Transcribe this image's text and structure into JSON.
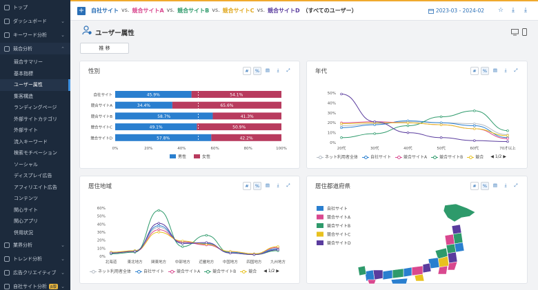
{
  "sidebar": {
    "top_items": [
      {
        "label": "トップ",
        "chevron": ""
      },
      {
        "label": "ダッシュボード",
        "chevron": "⌄"
      },
      {
        "label": "キーワード分析",
        "chevron": "⌄"
      },
      {
        "label": "競合分析",
        "chevron": "⌃"
      }
    ],
    "sub_items": [
      "競合サマリー",
      "基本指標",
      "ユーザー属性",
      "集客構造",
      "ランディングページ",
      "外部サイトカテゴリ",
      "外部サイト",
      "流入キーワード",
      "検索モチベーション",
      "ソーシャル",
      "ディスプレイ広告",
      "アフィリエイト広告",
      "コンテンツ",
      "関心サイト",
      "関心アプリ",
      "併用状況"
    ],
    "active_sub": "ユーザー属性",
    "bottom_items": [
      {
        "label": "業界分析",
        "chevron": "⌄"
      },
      {
        "label": "トレンド分析",
        "chevron": "⌄"
      },
      {
        "label": "広告クリエイティブ",
        "chevron": "⌄"
      },
      {
        "label": "自社サイト分析",
        "chevron": "⌄",
        "badge": "β版"
      }
    ]
  },
  "topbar": {
    "title_parts": [
      {
        "text": "自社サイト",
        "color": "#2a6fb6"
      },
      {
        "text": "vs.",
        "color": "#555"
      },
      {
        "text": "競合サイトA",
        "color": "#d9488f"
      },
      {
        "text": "vs.",
        "color": "#555"
      },
      {
        "text": "競合サイトB",
        "color": "#2e9a6b"
      },
      {
        "text": "vs.",
        "color": "#555"
      },
      {
        "text": "競合サイトC",
        "color": "#e0a81f"
      },
      {
        "text": "vs.",
        "color": "#555"
      },
      {
        "text": "競合サイトD",
        "color": "#5a3c9e"
      },
      {
        "text": "（すべてのユーザー）",
        "color": "#333"
      }
    ],
    "date_range": "2023-03 - 2024-02"
  },
  "page": {
    "title": "ユーザー属性",
    "button": "推 移"
  },
  "panels": {
    "gender": {
      "title": "性別"
    },
    "age": {
      "title": "年代",
      "pager": "1/2"
    },
    "region": {
      "title": "居住地域",
      "pager": "1/2"
    },
    "prefecture": {
      "title": "居住都道府県"
    }
  },
  "tools": [
    "#",
    "%"
  ],
  "colors": {
    "self": "#2a7fcf",
    "a": "#d9488f",
    "b": "#2e9a6b",
    "c": "#e8c11f",
    "d": "#5a3c9e",
    "net": "#b5bcc5",
    "male": "#2a7fcf",
    "female": "#b83b5e"
  },
  "chart_data": [
    {
      "type": "bar",
      "title": "性別",
      "categories": [
        "自社サイト",
        "競合サイトA",
        "競合サイトB",
        "競合サイトC",
        "競合サイトD"
      ],
      "series": [
        {
          "name": "男性",
          "values": [
            45.9,
            34.4,
            58.7,
            49.1,
            57.8
          ],
          "labels": [
            "45.9%",
            "34.4%",
            "58.7%",
            "49.1%",
            "57.8%"
          ]
        },
        {
          "name": "女性",
          "values": [
            54.1,
            65.6,
            41.3,
            50.9,
            42.2
          ],
          "labels": [
            "54.1%",
            "65.6%",
            "41.3%",
            "50.9%",
            "42.2%"
          ]
        }
      ],
      "xticks": [
        "0%",
        "20%",
        "40%",
        "60%",
        "80%",
        "100%"
      ],
      "xlim": [
        0,
        100
      ],
      "stacked": true
    },
    {
      "type": "line",
      "title": "年代",
      "categories": [
        "20代",
        "30代",
        "40代",
        "50代",
        "60代",
        "70才以上"
      ],
      "yticks": [
        "0%",
        "10%",
        "20%",
        "30%",
        "40%",
        "50%"
      ],
      "ylim": [
        0,
        50
      ],
      "series": [
        {
          "name": "ネット利用者全体",
          "values": [
            17,
            19,
            21,
            20,
            19,
            8
          ]
        },
        {
          "name": "自社サイト",
          "values": [
            15,
            18,
            22,
            20,
            17,
            5
          ]
        },
        {
          "name": "競合サイトA",
          "values": [
            20,
            21,
            20,
            18,
            14,
            4
          ]
        },
        {
          "name": "競合サイトB",
          "values": [
            5,
            9,
            17,
            26,
            32,
            12
          ]
        },
        {
          "name": "競合サイトC",
          "values": [
            19,
            20,
            20,
            18,
            14,
            7
          ]
        },
        {
          "name": "競合サイトD",
          "values": [
            49,
            21,
            10,
            5,
            2,
            1
          ]
        }
      ],
      "legend_visible": [
        "ネット利用者全体",
        "自社サイト",
        "競合サイトA",
        "競合サイトB",
        "競合"
      ]
    },
    {
      "type": "line",
      "title": "居住地域",
      "categories": [
        "北海道",
        "東北地方",
        "関東地方",
        "中部地方",
        "近畿地方",
        "中国地方",
        "四国地方",
        "九州地方"
      ],
      "yticks": [
        "0%",
        "10%",
        "20%",
        "30%",
        "40%",
        "50%",
        "60%"
      ],
      "ylim": [
        0,
        60
      ],
      "series": [
        {
          "name": "ネット利用者全体",
          "values": [
            4,
            6,
            36,
            17,
            15,
            5,
            3,
            10
          ]
        },
        {
          "name": "自社サイト",
          "values": [
            4,
            7,
            38,
            16,
            16,
            5,
            3,
            9
          ]
        },
        {
          "name": "競合サイトA",
          "values": [
            5,
            6,
            33,
            18,
            14,
            6,
            3,
            11
          ]
        },
        {
          "name": "競合サイトB",
          "values": [
            3,
            5,
            57,
            12,
            26,
            4,
            2,
            7
          ]
        },
        {
          "name": "競合サイトC",
          "values": [
            5,
            7,
            30,
            19,
            15,
            6,
            3,
            12
          ]
        },
        {
          "name": "競合サイトD",
          "values": [
            4,
            6,
            41,
            16,
            17,
            4,
            2,
            8
          ]
        }
      ],
      "legend_visible": [
        "ネット利用者全体",
        "自社サイト",
        "競合サイトA",
        "競合サイトB",
        "競合"
      ]
    },
    {
      "type": "map",
      "title": "居住都道府県",
      "legend": [
        "自社サイト",
        "競合サイトA",
        "競合サイトB",
        "競合サイトC",
        "競合サイトD"
      ]
    }
  ]
}
